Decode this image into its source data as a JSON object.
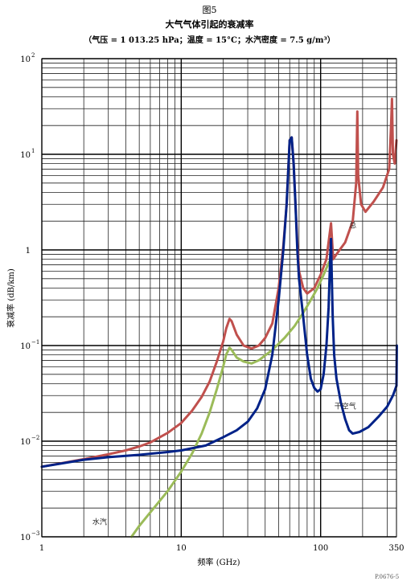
{
  "figure_label": "图5",
  "footnote": "P.0676-5",
  "chart_data": {
    "type": "line",
    "title": "大气气体引起的衰减率",
    "subtitle": "（气压 = 1 013.25 hPa；温度 = 15°C；水汽密度 = 7.5 g/m³）",
    "xlabel": "频率 (GHz)",
    "ylabel": "衰减率 (dB/km)",
    "xscale": "log",
    "yscale": "log",
    "xlim": [
      1,
      350
    ],
    "ylim": [
      0.001,
      100
    ],
    "grid": true,
    "x_ticks": [
      {
        "value": 1,
        "label": "1"
      },
      {
        "value": 10,
        "label": "10"
      },
      {
        "value": 100,
        "label": "100"
      },
      {
        "value": 350,
        "label": "350"
      }
    ],
    "y_ticks": [
      {
        "value": 0.001,
        "base": "10",
        "exp": "−3"
      },
      {
        "value": 0.01,
        "base": "10",
        "exp": "−2"
      },
      {
        "value": 0.1,
        "base": "10",
        "exp": "−1"
      },
      {
        "value": 1,
        "base": "1",
        "exp": ""
      },
      {
        "value": 10,
        "base": "10",
        "exp": "1"
      },
      {
        "value": 100,
        "base": "10",
        "exp": "2"
      }
    ],
    "series": [
      {
        "name": "总",
        "color": "#c0504d",
        "label_at": [
          170,
          1.7
        ],
        "points": [
          [
            1,
            0.0054
          ],
          [
            2,
            0.0065
          ],
          [
            3,
            0.0073
          ],
          [
            4,
            0.008
          ],
          [
            5,
            0.0088
          ],
          [
            6,
            0.0097
          ],
          [
            8,
            0.0122
          ],
          [
            10,
            0.0155
          ],
          [
            12,
            0.021
          ],
          [
            14,
            0.029
          ],
          [
            16,
            0.042
          ],
          [
            18,
            0.068
          ],
          [
            20,
            0.11
          ],
          [
            21,
            0.15
          ],
          [
            22.2,
            0.19
          ],
          [
            23,
            0.18
          ],
          [
            25,
            0.13
          ],
          [
            28,
            0.1
          ],
          [
            32,
            0.093
          ],
          [
            36,
            0.1
          ],
          [
            40,
            0.12
          ],
          [
            45,
            0.17
          ],
          [
            50,
            0.4
          ],
          [
            54,
            1.1
          ],
          [
            57,
            3
          ],
          [
            60,
            14
          ],
          [
            62,
            15
          ],
          [
            64,
            8
          ],
          [
            66,
            3
          ],
          [
            68,
            1.2
          ],
          [
            70,
            0.6
          ],
          [
            75,
            0.4
          ],
          [
            80,
            0.35
          ],
          [
            90,
            0.4
          ],
          [
            100,
            0.55
          ],
          [
            110,
            0.8
          ],
          [
            118.75,
            1.9
          ],
          [
            123,
            0.8
          ],
          [
            130,
            0.9
          ],
          [
            150,
            1.2
          ],
          [
            170,
            2
          ],
          [
            180,
            5
          ],
          [
            183.3,
            28
          ],
          [
            186,
            6
          ],
          [
            195,
            3
          ],
          [
            210,
            2.5
          ],
          [
            240,
            3.2
          ],
          [
            280,
            4.5
          ],
          [
            310,
            7
          ],
          [
            320,
            20
          ],
          [
            325,
            38
          ],
          [
            330,
            10
          ],
          [
            340,
            8
          ],
          [
            350,
            14
          ]
        ]
      },
      {
        "name": "干空气",
        "color": "#002288",
        "label_at": [
          150,
          0.022
        ],
        "points": [
          [
            1,
            0.0054
          ],
          [
            2,
            0.0064
          ],
          [
            3,
            0.0068
          ],
          [
            5,
            0.0072
          ],
          [
            8,
            0.0077
          ],
          [
            10,
            0.008
          ],
          [
            15,
            0.009
          ],
          [
            20,
            0.011
          ],
          [
            25,
            0.013
          ],
          [
            30,
            0.016
          ],
          [
            35,
            0.022
          ],
          [
            40,
            0.035
          ],
          [
            45,
            0.08
          ],
          [
            50,
            0.3
          ],
          [
            54,
            1
          ],
          [
            57,
            3
          ],
          [
            60,
            14
          ],
          [
            62,
            15
          ],
          [
            64,
            8
          ],
          [
            66,
            3
          ],
          [
            68,
            1
          ],
          [
            70,
            0.5
          ],
          [
            75,
            0.2
          ],
          [
            80,
            0.08
          ],
          [
            85,
            0.045
          ],
          [
            90,
            0.036
          ],
          [
            95,
            0.033
          ],
          [
            100,
            0.035
          ],
          [
            105,
            0.05
          ],
          [
            110,
            0.1
          ],
          [
            114,
            0.25
          ],
          [
            117,
            0.8
          ],
          [
            118.75,
            1.3
          ],
          [
            120,
            0.6
          ],
          [
            122,
            0.2
          ],
          [
            125,
            0.08
          ],
          [
            130,
            0.045
          ],
          [
            140,
            0.025
          ],
          [
            150,
            0.017
          ],
          [
            160,
            0.013
          ],
          [
            170,
            0.012
          ],
          [
            190,
            0.0125
          ],
          [
            220,
            0.014
          ],
          [
            260,
            0.018
          ],
          [
            300,
            0.023
          ],
          [
            330,
            0.03
          ],
          [
            350,
            0.038
          ],
          [
            352,
            0.1
          ]
        ]
      },
      {
        "name": "水汽",
        "color": "#9bbb59",
        "label_at": [
          2.6,
          0.00135
        ],
        "points": [
          [
            4.4,
            0.001
          ],
          [
            5,
            0.0013
          ],
          [
            6,
            0.0018
          ],
          [
            8,
            0.003
          ],
          [
            10,
            0.0048
          ],
          [
            12,
            0.0075
          ],
          [
            14,
            0.012
          ],
          [
            16,
            0.02
          ],
          [
            18,
            0.035
          ],
          [
            20,
            0.06
          ],
          [
            21,
            0.08
          ],
          [
            22.2,
            0.095
          ],
          [
            23,
            0.09
          ],
          [
            25,
            0.075
          ],
          [
            28,
            0.068
          ],
          [
            32,
            0.065
          ],
          [
            36,
            0.07
          ],
          [
            45,
            0.09
          ],
          [
            55,
            0.12
          ],
          [
            65,
            0.16
          ],
          [
            75,
            0.22
          ],
          [
            85,
            0.3
          ],
          [
            95,
            0.4
          ],
          [
            105,
            0.55
          ],
          [
            115,
            0.75
          ]
        ]
      }
    ]
  }
}
